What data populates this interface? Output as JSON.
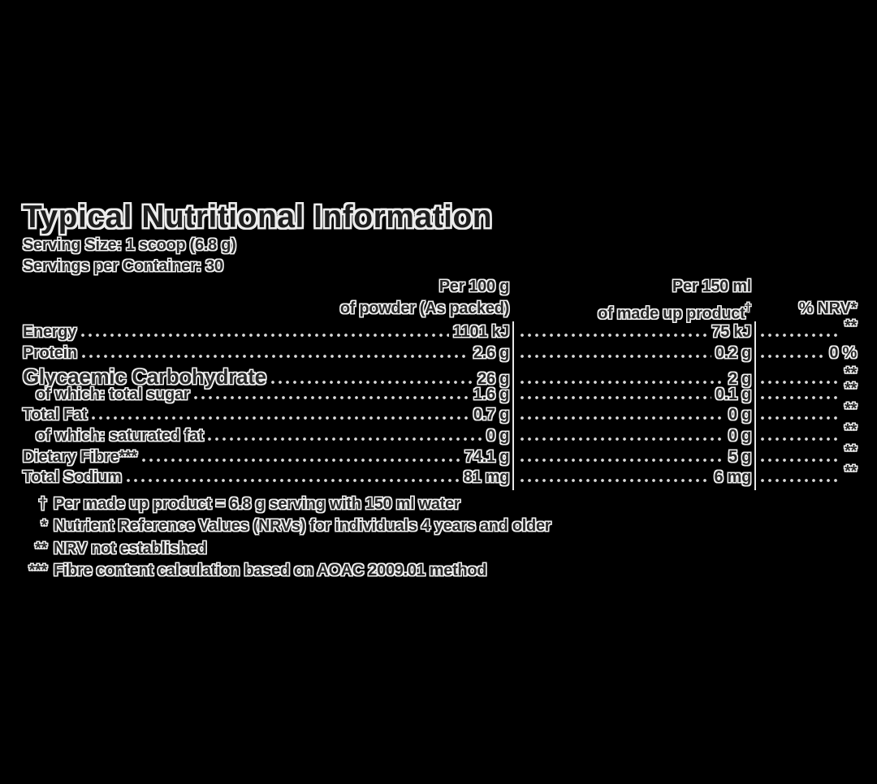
{
  "colors": {
    "background": "#000000",
    "text": "#262626",
    "halo": "#f0f0f0",
    "leader_dots": "#d9d9d9",
    "column_divider": "#e8e8e8"
  },
  "title": "Typical Nutritional Information",
  "serving": {
    "size": "Serving Size: 1 scoop (6.8 g)",
    "per_container": "Servings per Container: 30"
  },
  "table": {
    "headers": {
      "col1_line1": "Per 100 g",
      "col1_line2": "of powder (As packed)",
      "col2_line1": "Per 150 ml",
      "col2_line2": "of made up product",
      "col2_superscript": "†",
      "col3": "% NRV*"
    },
    "rows": [
      {
        "label": "Energy",
        "per100": "1101 kJ",
        "per150": "75 kJ",
        "nrv": "**"
      },
      {
        "label": "Protein",
        "per100": "2.6 g",
        "per150": "0.2 g",
        "nrv": "0 %"
      },
      {
        "label": "Glycaemic Carbohydrate",
        "per100": "26 g",
        "per150": "2 g",
        "nrv": "**"
      },
      {
        "label": "of which: total sugar",
        "per100": "1.6 g",
        "per150": "0.1 g",
        "nrv": "**"
      },
      {
        "label": "Total Fat",
        "per100": "0.7 g",
        "per150": "0 g",
        "nrv": "**"
      },
      {
        "label": "of which: saturated fat",
        "per100": "0 g",
        "per150": "0 g",
        "nrv": "**"
      },
      {
        "label": "Dietary Fibre***",
        "per100": "74.1 g",
        "per150": "5 g",
        "nrv": "**"
      },
      {
        "label": "Total Sodium",
        "per100": "81 mg",
        "per150": "6 mg",
        "nrv": "**"
      }
    ]
  },
  "footnotes": [
    {
      "marker": "†",
      "text": "Per made up product = 6.8 g serving with 150 ml water"
    },
    {
      "marker": "*",
      "text": "Nutrient Reference Values (NRVs) for individuals 4 years and older"
    },
    {
      "marker": "**",
      "text": "NRV not established"
    },
    {
      "marker": "***",
      "text": "Fibre content calculation based on AOAC 2009.01 method"
    }
  ]
}
